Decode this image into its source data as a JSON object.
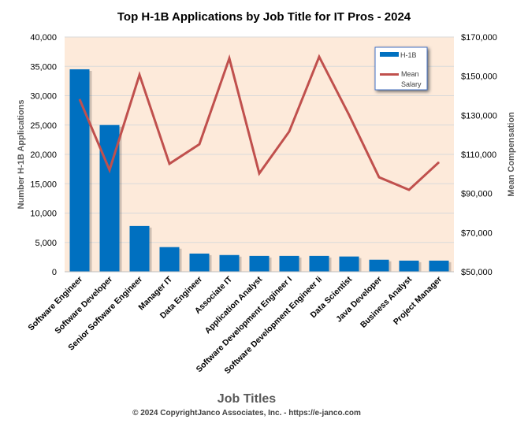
{
  "chart_data": {
    "type": "bar+line",
    "title": "Top H-1B Applications by Job Title for IT Pros - 2024",
    "xlabel": "Job Titles",
    "ylabel": "Number H-1B Applications",
    "y2label": "Mean Compensation",
    "footer": "© 2024 CopyrightJanco Associates, Inc. - https://e-janco.com",
    "categories": [
      "Software Engineer",
      "Software Developer",
      "Senior Software Engineer",
      "Manager IT",
      "Data Engineer",
      "Associate IT",
      "Application Analyst",
      "Software Development Engineer I",
      "Software Development Engineer Ii",
      "Data Scientist",
      "Java Developer",
      "Business Analyst",
      "Project Manager"
    ],
    "series": [
      {
        "name": "H-1B",
        "type": "bar",
        "axis": "left",
        "color": "#0070C0",
        "values": [
          34500,
          25000,
          7800,
          4200,
          3100,
          2850,
          2700,
          2700,
          2700,
          2600,
          2050,
          1900,
          1900
        ]
      },
      {
        "name": "Mean Salary",
        "type": "line",
        "axis": "right",
        "color": "#C0504D",
        "values": [
          138200,
          102000,
          150700,
          105200,
          115200,
          159100,
          100300,
          121700,
          159900,
          130100,
          98300,
          91900,
          106000
        ]
      }
    ],
    "ylim": [
      0,
      40000
    ],
    "yticks": [
      0,
      5000,
      10000,
      15000,
      20000,
      25000,
      30000,
      35000,
      40000
    ],
    "ytick_labels": [
      "0",
      "5,000",
      "10,000",
      "15,000",
      "20,000",
      "25,000",
      "30,000",
      "35,000",
      "40,000"
    ],
    "y2lim": [
      50000,
      170000
    ],
    "y2ticks": [
      50000,
      70000,
      90000,
      110000,
      130000,
      150000,
      170000
    ],
    "y2tick_labels": [
      "$50,000",
      "$70,000",
      "$90,000",
      "$110,000",
      "$130,000",
      "$150,000",
      "$170,000"
    ],
    "legend": {
      "position": "top-right",
      "labels": [
        "H-1B",
        "Mean",
        "Salary"
      ]
    },
    "grid": true,
    "plot_background": "#FDEADA"
  }
}
